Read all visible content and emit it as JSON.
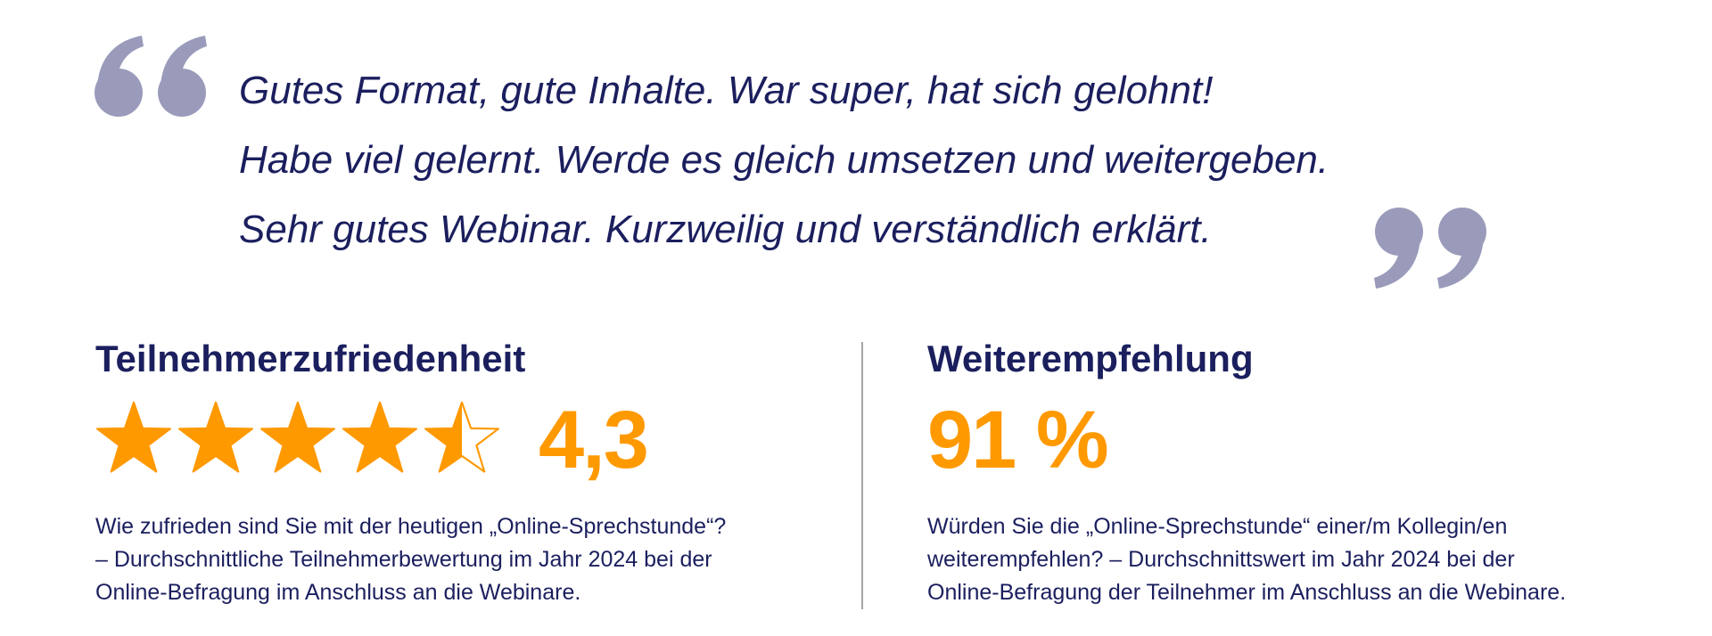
{
  "colors": {
    "navy": "#1b1f5e",
    "accent_orange": "#ff9900",
    "quote_mark": "#9a9bbb",
    "divider": "#a4a4a8"
  },
  "quote": {
    "open_icon": "open-quote-icon",
    "close_icon": "close-quote-icon",
    "lines": [
      "Gutes Format, gute Inhalte. War super, hat sich gelohnt!",
      "Habe viel gelernt. Werde es gleich umsetzen und weitergeben.",
      "Sehr gutes Webinar. Kurzweilig und verständlich erklärt."
    ]
  },
  "satisfaction": {
    "heading": "Teilnehmerzufriedenheit",
    "rating_value": "4,3",
    "rating_numeric": 4.3,
    "rating_max": 5,
    "star_icon": "star-icon",
    "description_lines": [
      "Wie zufrieden sind Sie mit der heutigen „Online-Sprechstunde“?",
      "– Durchschnittliche Teilnehmerbewertung im Jahr 2024 bei der",
      "Online-Befragung im Anschluss an die Webinare."
    ]
  },
  "recommendation": {
    "heading": "Weiterempfehlung",
    "value": "91 %",
    "description_lines": [
      "Würden Sie die „Online-Sprechstunde“ einer/m Kollegin/en",
      "weiterempfehlen? – Durchschnittswert im Jahr 2024 bei der",
      "Online-Befragung der Teilnehmer im Anschluss an die Webinare."
    ]
  }
}
